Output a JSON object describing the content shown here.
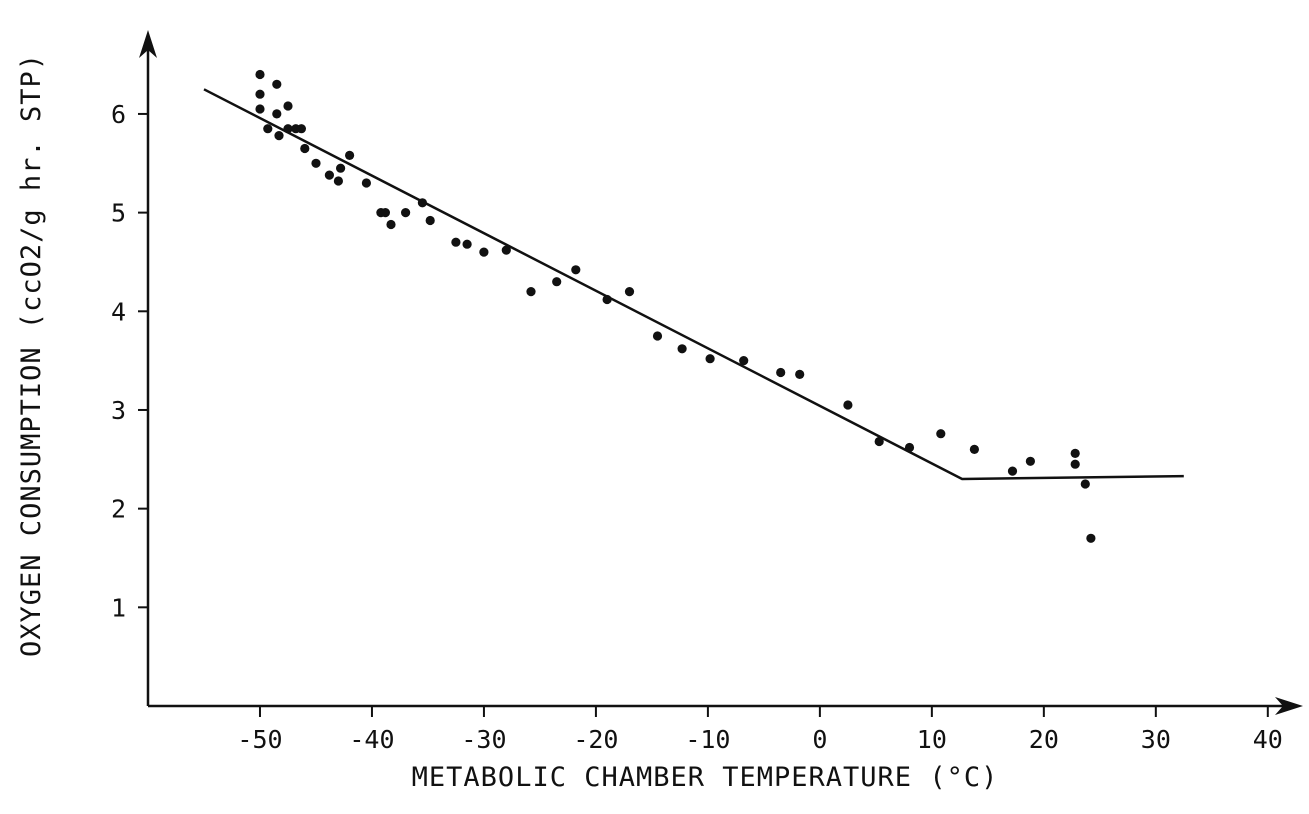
{
  "chart_data": {
    "type": "scatter",
    "title": "",
    "xlabel": "METABOLIC CHAMBER TEMPERATURE (°C)",
    "ylabel": "OXYGEN CONSUMPTION (ccO2/g hr. STP)",
    "xlim": [
      -60,
      41
    ],
    "ylim": [
      0,
      6.8
    ],
    "x_ticks": [
      -50,
      -40,
      -30,
      -20,
      -10,
      0,
      10,
      20,
      30,
      40
    ],
    "x_tick_labels": [
      "-50",
      "-40",
      "-30",
      "-20",
      "-10",
      "0",
      "10",
      "20",
      "30",
      "40"
    ],
    "y_ticks": [
      1,
      2,
      3,
      4,
      5,
      6
    ],
    "y_tick_labels": [
      "1",
      "2",
      "3",
      "4",
      "5",
      "6"
    ],
    "grid": false,
    "legend": "none",
    "series": [
      {
        "points": [
          [
            -50.0,
            6.4
          ],
          [
            -50.0,
            6.2
          ],
          [
            -50.0,
            6.05
          ],
          [
            -49.3,
            5.85
          ],
          [
            -48.5,
            6.3
          ],
          [
            -48.5,
            6.0
          ],
          [
            -48.3,
            5.78
          ],
          [
            -47.5,
            6.08
          ],
          [
            -47.5,
            5.85
          ],
          [
            -46.8,
            5.85
          ],
          [
            -46.3,
            5.85
          ],
          [
            -46.0,
            5.65
          ],
          [
            -45.0,
            5.5
          ],
          [
            -43.8,
            5.38
          ],
          [
            -43.0,
            5.32
          ],
          [
            -42.8,
            5.45
          ],
          [
            -42.0,
            5.58
          ],
          [
            -40.5,
            5.3
          ],
          [
            -39.2,
            5.0
          ],
          [
            -38.8,
            5.0
          ],
          [
            -38.3,
            4.88
          ],
          [
            -37.0,
            5.0
          ],
          [
            -35.5,
            5.1
          ],
          [
            -34.8,
            4.92
          ],
          [
            -32.5,
            4.7
          ],
          [
            -31.5,
            4.68
          ],
          [
            -30.0,
            4.6
          ],
          [
            -28.0,
            4.62
          ],
          [
            -25.8,
            4.2
          ],
          [
            -23.5,
            4.3
          ],
          [
            -21.8,
            4.42
          ],
          [
            -19.0,
            4.12
          ],
          [
            -17.0,
            4.2
          ],
          [
            -14.5,
            3.75
          ],
          [
            -12.3,
            3.62
          ],
          [
            -9.8,
            3.52
          ],
          [
            -6.8,
            3.5
          ],
          [
            -3.5,
            3.38
          ],
          [
            -1.8,
            3.36
          ],
          [
            2.5,
            3.05
          ],
          [
            5.3,
            2.68
          ],
          [
            8.0,
            2.62
          ],
          [
            10.8,
            2.76
          ],
          [
            13.8,
            2.6
          ],
          [
            17.2,
            2.38
          ],
          [
            18.8,
            2.48
          ],
          [
            22.8,
            2.56
          ],
          [
            22.8,
            2.45
          ],
          [
            23.7,
            2.25
          ],
          [
            24.2,
            1.7
          ]
        ]
      }
    ],
    "fit_line": [
      [
        -55,
        6.25
      ],
      [
        12.7,
        2.3
      ],
      [
        32.5,
        2.33
      ]
    ]
  }
}
